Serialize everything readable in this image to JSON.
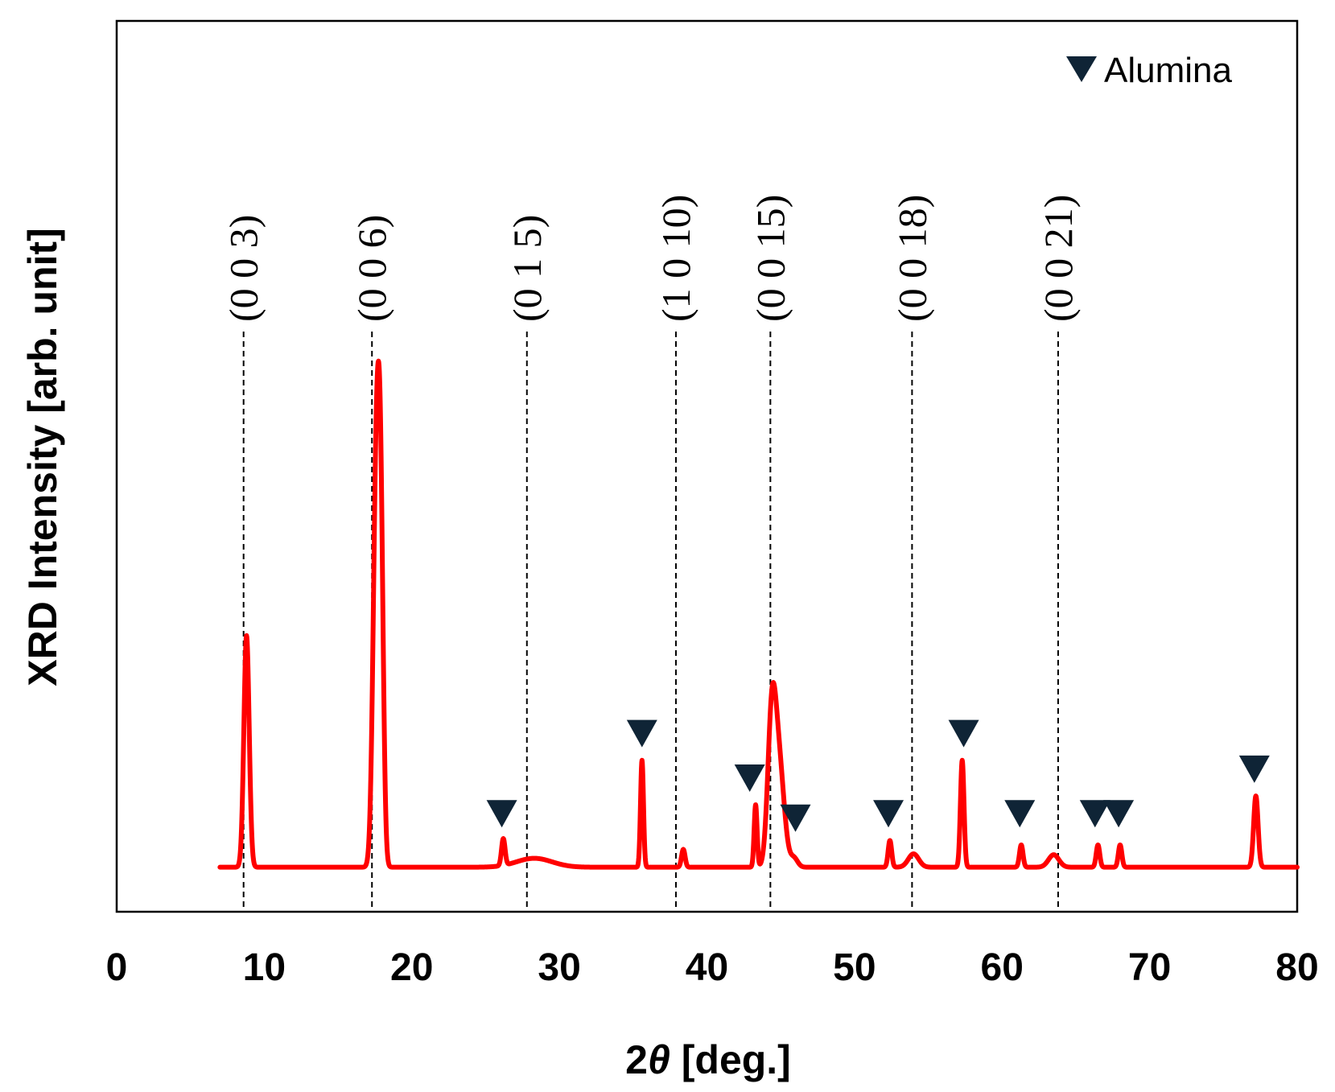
{
  "chart_data": {
    "type": "line",
    "xlabel_prefix": "2",
    "xlabel_symbol": "θ",
    "xlabel_suffix": " [deg.]",
    "ylabel": "XRD Intensity [arb. unit]",
    "xlim": [
      0,
      80
    ],
    "ylim": [
      0,
      100
    ],
    "x_ticks": [
      "0",
      "10",
      "20",
      "30",
      "40",
      "50",
      "60",
      "70",
      "80"
    ],
    "y_ticks": [],
    "grid": false,
    "legend_position": "top-right",
    "line_color": "#ff0000",
    "marker_color": "#0f2436",
    "series": [
      {
        "baseline": 5,
        "start_x": 7,
        "end_x": 80,
        "peaks": [
          {
            "x": 8.8,
            "h": 26,
            "w": 0.18
          },
          {
            "x": 17.6,
            "h": 44,
            "w": 0.22
          },
          {
            "x": 17.9,
            "h": 31,
            "w": 0.18
          },
          {
            "x": 26.2,
            "h": 3,
            "w": 0.12
          },
          {
            "x": 28.3,
            "h": 1,
            "w": 1.2
          },
          {
            "x": 35.6,
            "h": 12,
            "w": 0.1
          },
          {
            "x": 38.4,
            "h": 2,
            "w": 0.12
          },
          {
            "x": 43.3,
            "h": 7,
            "w": 0.1
          },
          {
            "x": 44.4,
            "h": 16,
            "w": 0.28
          },
          {
            "x": 44.9,
            "h": 11,
            "w": 0.35
          },
          {
            "x": 45.9,
            "h": 1,
            "w": 0.25
          },
          {
            "x": 52.4,
            "h": 3,
            "w": 0.12
          },
          {
            "x": 54.0,
            "h": 1.5,
            "w": 0.35
          },
          {
            "x": 57.3,
            "h": 12,
            "w": 0.12
          },
          {
            "x": 61.3,
            "h": 2.5,
            "w": 0.12
          },
          {
            "x": 63.5,
            "h": 1.4,
            "w": 0.35
          },
          {
            "x": 66.5,
            "h": 2.5,
            "w": 0.12
          },
          {
            "x": 68.0,
            "h": 2.5,
            "w": 0.12
          },
          {
            "x": 77.2,
            "h": 8,
            "w": 0.15
          }
        ]
      }
    ],
    "reflections": [
      {
        "label": "(0 0 3)",
        "x": 8.6
      },
      {
        "label": "(0 0 6)",
        "x": 17.3
      },
      {
        "label": "(0 1 5)",
        "x": 27.8
      },
      {
        "label": "(1 0 10)",
        "x": 37.9
      },
      {
        "label": "(0 0 15)",
        "x": 44.3
      },
      {
        "label": "(0 0 18)",
        "x": 53.9
      },
      {
        "label": "(0 0 21)",
        "x": 63.8
      }
    ],
    "alumina_markers": [
      {
        "x": 26.1,
        "y": 11
      },
      {
        "x": 35.6,
        "y": 20
      },
      {
        "x": 42.9,
        "y": 15
      },
      {
        "x": 46.0,
        "y": 10.5
      },
      {
        "x": 52.3,
        "y": 11
      },
      {
        "x": 57.4,
        "y": 20
      },
      {
        "x": 61.2,
        "y": 11
      },
      {
        "x": 66.3,
        "y": 11
      },
      {
        "x": 67.9,
        "y": 11
      },
      {
        "x": 77.1,
        "y": 16
      }
    ],
    "legend": [
      {
        "name": "Alumina",
        "marker": "inverted-triangle"
      }
    ]
  }
}
